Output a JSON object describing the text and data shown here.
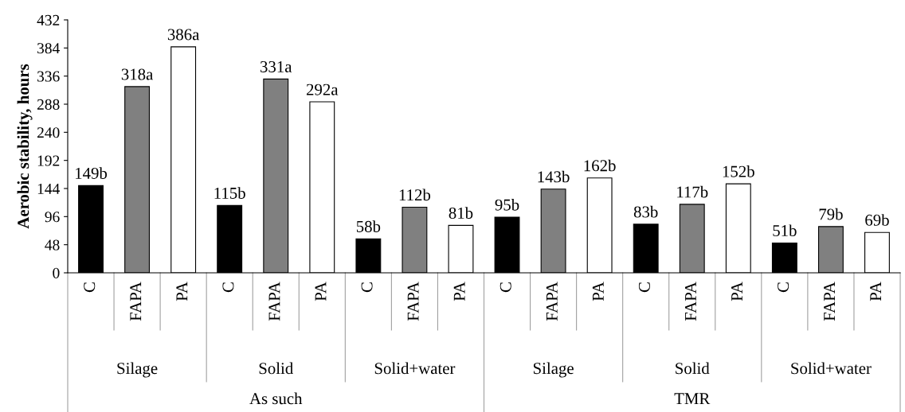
{
  "chart_data": {
    "type": "bar",
    "ylabel": "Aerobic stability, hours",
    "categories": [
      "C",
      "FAPA",
      "PA",
      "C",
      "FAPA",
      "PA",
      "C",
      "FAPA",
      "PA",
      "C",
      "FAPA",
      "PA",
      "C",
      "FAPA",
      "PA",
      "C",
      "FAPA",
      "PA"
    ],
    "values": [
      149,
      318,
      386,
      115,
      331,
      292,
      58,
      112,
      81,
      95,
      143,
      162,
      83,
      117,
      152,
      51,
      79,
      69
    ],
    "value_labels": [
      "149b",
      "318a",
      "386a",
      "115b",
      "331a",
      "292a",
      "58b",
      "112b",
      "81b",
      "95b",
      "143b",
      "162b",
      "83b",
      "117b",
      "152b",
      "51b",
      "79b",
      "69b"
    ],
    "colors": [
      "#000000",
      "#808080",
      "#ffffff",
      "#000000",
      "#808080",
      "#ffffff",
      "#000000",
      "#808080",
      "#ffffff",
      "#000000",
      "#808080",
      "#ffffff",
      "#000000",
      "#808080",
      "#ffffff",
      "#000000",
      "#808080",
      "#ffffff"
    ],
    "annotations": [
      "Silage",
      "Solid",
      "Solid+water",
      "Silage",
      "Solid",
      "Solid+water",
      "As such",
      "TMR"
    ],
    "ylim": [
      0,
      432
    ],
    "yticks": [
      0,
      48,
      96,
      144,
      192,
      240,
      288,
      336,
      384,
      432
    ],
    "grid": false
  }
}
